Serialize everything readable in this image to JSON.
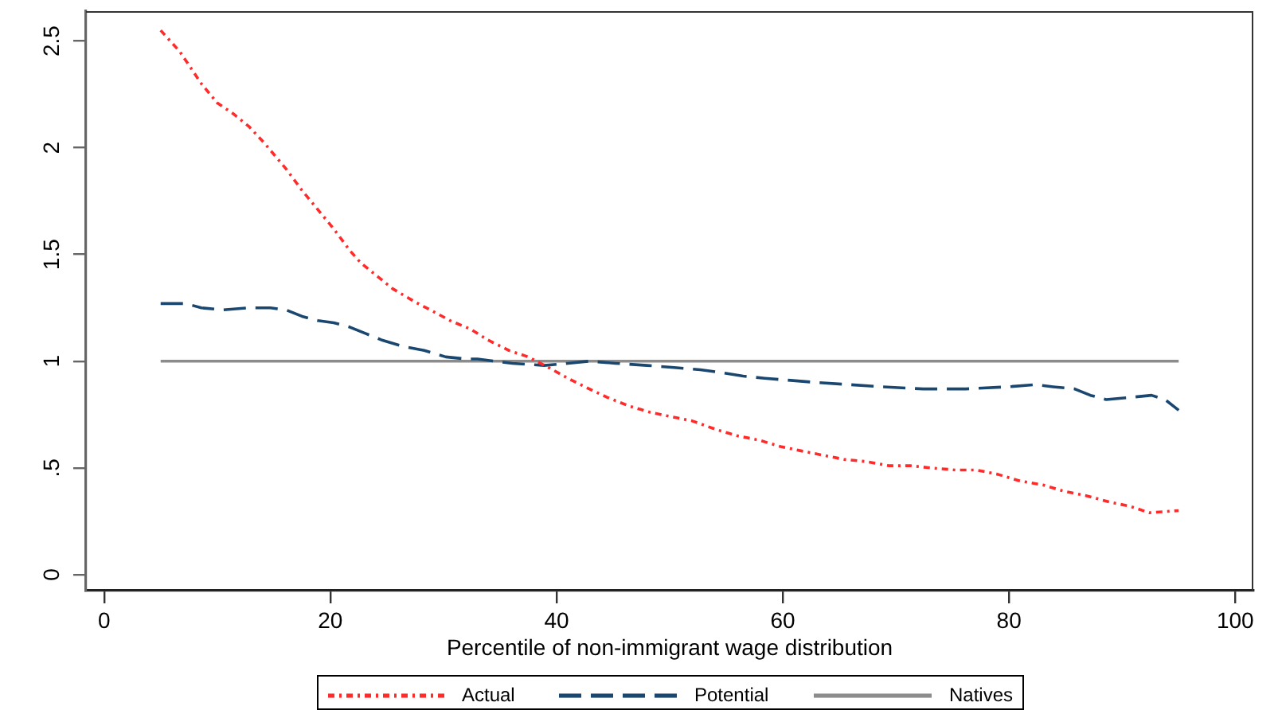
{
  "chart_data": {
    "type": "line",
    "xlabel": "Percentile of non-immigrant wage distribution",
    "xlim": [
      -1.6,
      101.6
    ],
    "ylim": [
      -0.075,
      2.64
    ],
    "xticks": [
      0,
      20,
      40,
      60,
      80,
      100
    ],
    "yticks": [
      0,
      {
        "value": 0.5,
        "label": ".5"
      },
      1,
      1.5,
      2,
      2.5
    ],
    "grid": false,
    "legend": "bottom",
    "marker": "none",
    "series": [
      {
        "name": "Actual",
        "color": "#ff2a2a",
        "line_style": "dotted",
        "x": [
          5,
          6.7,
          8.6,
          10,
          11.4,
          12.8,
          14.2,
          16.1,
          17.5,
          18.9,
          20.3,
          21.7,
          22.7,
          24.1,
          25.5,
          27.4,
          29.2,
          30.6,
          32.4,
          33.9,
          35.8,
          37.5,
          39.3,
          41,
          42.9,
          44.5,
          46.4,
          48.3,
          50.1,
          52,
          54.1,
          56,
          57.9,
          59.8,
          61.6,
          63.5,
          65.4,
          67.3,
          69.4,
          71.3,
          73.1,
          75.3,
          77.1,
          79,
          80.9,
          83,
          84.9,
          86.8,
          88.9,
          90.7,
          92.4,
          95
        ],
        "values": [
          2.55,
          2.45,
          2.3,
          2.21,
          2.16,
          2.1,
          2.02,
          1.9,
          1.8,
          1.71,
          1.62,
          1.52,
          1.46,
          1.4,
          1.34,
          1.28,
          1.23,
          1.19,
          1.15,
          1.1,
          1.05,
          1.02,
          0.97,
          0.92,
          0.87,
          0.83,
          0.79,
          0.76,
          0.74,
          0.72,
          0.68,
          0.65,
          0.63,
          0.6,
          0.58,
          0.56,
          0.54,
          0.53,
          0.51,
          0.51,
          0.5,
          0.49,
          0.49,
          0.47,
          0.44,
          0.42,
          0.39,
          0.37,
          0.34,
          0.32,
          0.29,
          0.3
        ]
      },
      {
        "name": "Potential",
        "color": "#1a476f",
        "line_style": "dashed",
        "x": [
          5,
          7.2,
          8.6,
          10.5,
          12.8,
          14.7,
          16.1,
          17.5,
          18.9,
          20.3,
          21.7,
          23.1,
          24.5,
          26.4,
          28.3,
          30.2,
          32.1,
          33,
          36.1,
          38.9,
          41,
          42.9,
          45.2,
          48,
          50.4,
          52.7,
          54.1,
          56.5,
          58.4,
          60.7,
          63,
          65.9,
          68.7,
          72.4,
          76.2,
          79.9,
          82.3,
          83.9,
          85.8,
          87.2,
          88.6,
          90.7,
          92.6,
          93.8,
          95
        ],
        "values": [
          1.27,
          1.27,
          1.25,
          1.24,
          1.25,
          1.25,
          1.24,
          1.21,
          1.19,
          1.18,
          1.16,
          1.13,
          1.1,
          1.07,
          1.05,
          1.02,
          1.01,
          1.01,
          0.99,
          0.98,
          0.99,
          1,
          0.99,
          0.98,
          0.97,
          0.96,
          0.95,
          0.93,
          0.92,
          0.91,
          0.9,
          0.89,
          0.88,
          0.87,
          0.87,
          0.88,
          0.89,
          0.88,
          0.87,
          0.84,
          0.82,
          0.83,
          0.84,
          0.82,
          0.77
        ]
      },
      {
        "name": "Natives",
        "color": "#8c8c8c",
        "line_style": "solid",
        "x": [
          5,
          95
        ],
        "values": [
          1,
          1
        ]
      }
    ]
  }
}
